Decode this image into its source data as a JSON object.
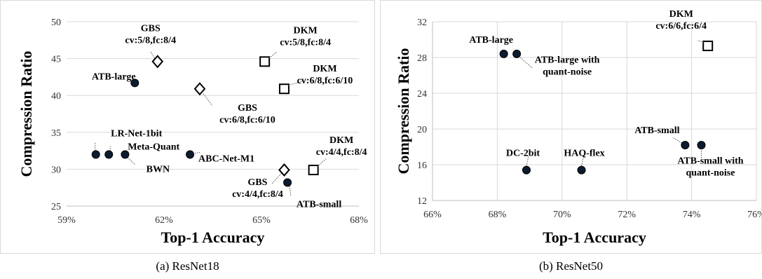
{
  "figure": {
    "caption_a": "(a) ResNet18",
    "caption_b": "(b) ResNet50"
  },
  "chart_data": [
    {
      "type": "scatter",
      "xlabel": "Top-1 Accuracy",
      "ylabel": "Compression Ratio",
      "xlim": [
        59,
        68
      ],
      "ylim": [
        25,
        50
      ],
      "x_ticks": [
        "59%",
        "62%",
        "65%",
        "68%"
      ],
      "y_ticks": [
        "25",
        "30",
        "35",
        "40",
        "45",
        "50"
      ],
      "grid": "horizontal",
      "points": [
        {
          "label": [
            "GBS",
            "cv:5/8,fc:8/4"
          ],
          "x": 61.8,
          "y": 44.6,
          "marker": "diamond"
        },
        {
          "label": [
            "DKM",
            "cv:5/8,fc:8/4"
          ],
          "x": 65.1,
          "y": 44.6,
          "marker": "square"
        },
        {
          "label": [
            "ATB-large"
          ],
          "x": 61.1,
          "y": 41.7,
          "marker": "circle"
        },
        {
          "label": [
            "GBS",
            "cv:6/8,fc:6/10"
          ],
          "x": 63.1,
          "y": 40.9,
          "marker": "diamond"
        },
        {
          "label": [
            "DKM",
            "cv:6/8,fc:6/10"
          ],
          "x": 65.7,
          "y": 40.9,
          "marker": "square"
        },
        {
          "label": [
            "LR-Net-1bit"
          ],
          "x": 59.9,
          "y": 32.0,
          "marker": "circle"
        },
        {
          "label": [
            "Meta-Quant"
          ],
          "x": 60.3,
          "y": 32.0,
          "marker": "circle"
        },
        {
          "label": [
            "BWN"
          ],
          "x": 60.8,
          "y": 32.0,
          "marker": "circle"
        },
        {
          "label": [
            "ABC-Net-M1"
          ],
          "x": 62.8,
          "y": 32.0,
          "marker": "circle"
        },
        {
          "label": [
            "DKM",
            "cv:4/4,fc:8/4"
          ],
          "x": 66.6,
          "y": 29.9,
          "marker": "square"
        },
        {
          "label": [
            "GBS",
            "cv:4/4,fc:8/4"
          ],
          "x": 65.7,
          "y": 29.9,
          "marker": "diamond"
        },
        {
          "label": [
            "ATB-small"
          ],
          "x": 65.8,
          "y": 28.2,
          "marker": "circle"
        }
      ]
    },
    {
      "type": "scatter",
      "xlabel": "Top-1 Accuracy",
      "ylabel": "Compression Ratio",
      "xlim": [
        66,
        76
      ],
      "ylim": [
        12,
        32
      ],
      "x_ticks": [
        "66%",
        "68%",
        "70%",
        "72%",
        "74%",
        "76%"
      ],
      "y_ticks": [
        "12",
        "16",
        "20",
        "24",
        "28",
        "32"
      ],
      "grid": "both",
      "points": [
        {
          "label": [
            "ATB-large"
          ],
          "x": 68.2,
          "y": 28.4,
          "marker": "circle"
        },
        {
          "label": [
            "ATB-large with",
            "quant-noise"
          ],
          "x": 68.6,
          "y": 28.4,
          "marker": "circle"
        },
        {
          "label": [
            "DKM",
            "cv:6/6,fc:6/4"
          ],
          "x": 74.5,
          "y": 29.3,
          "marker": "square"
        },
        {
          "label": [
            "ATB-small"
          ],
          "x": 73.8,
          "y": 18.2,
          "marker": "circle"
        },
        {
          "label": [
            "ATB-small with",
            "quant-noise"
          ],
          "x": 74.3,
          "y": 18.2,
          "marker": "circle"
        },
        {
          "label": [
            "DC-2bit"
          ],
          "x": 68.9,
          "y": 15.4,
          "marker": "circle"
        },
        {
          "label": [
            "HAQ-flex"
          ],
          "x": 70.6,
          "y": 15.4,
          "marker": "circle"
        }
      ]
    }
  ]
}
